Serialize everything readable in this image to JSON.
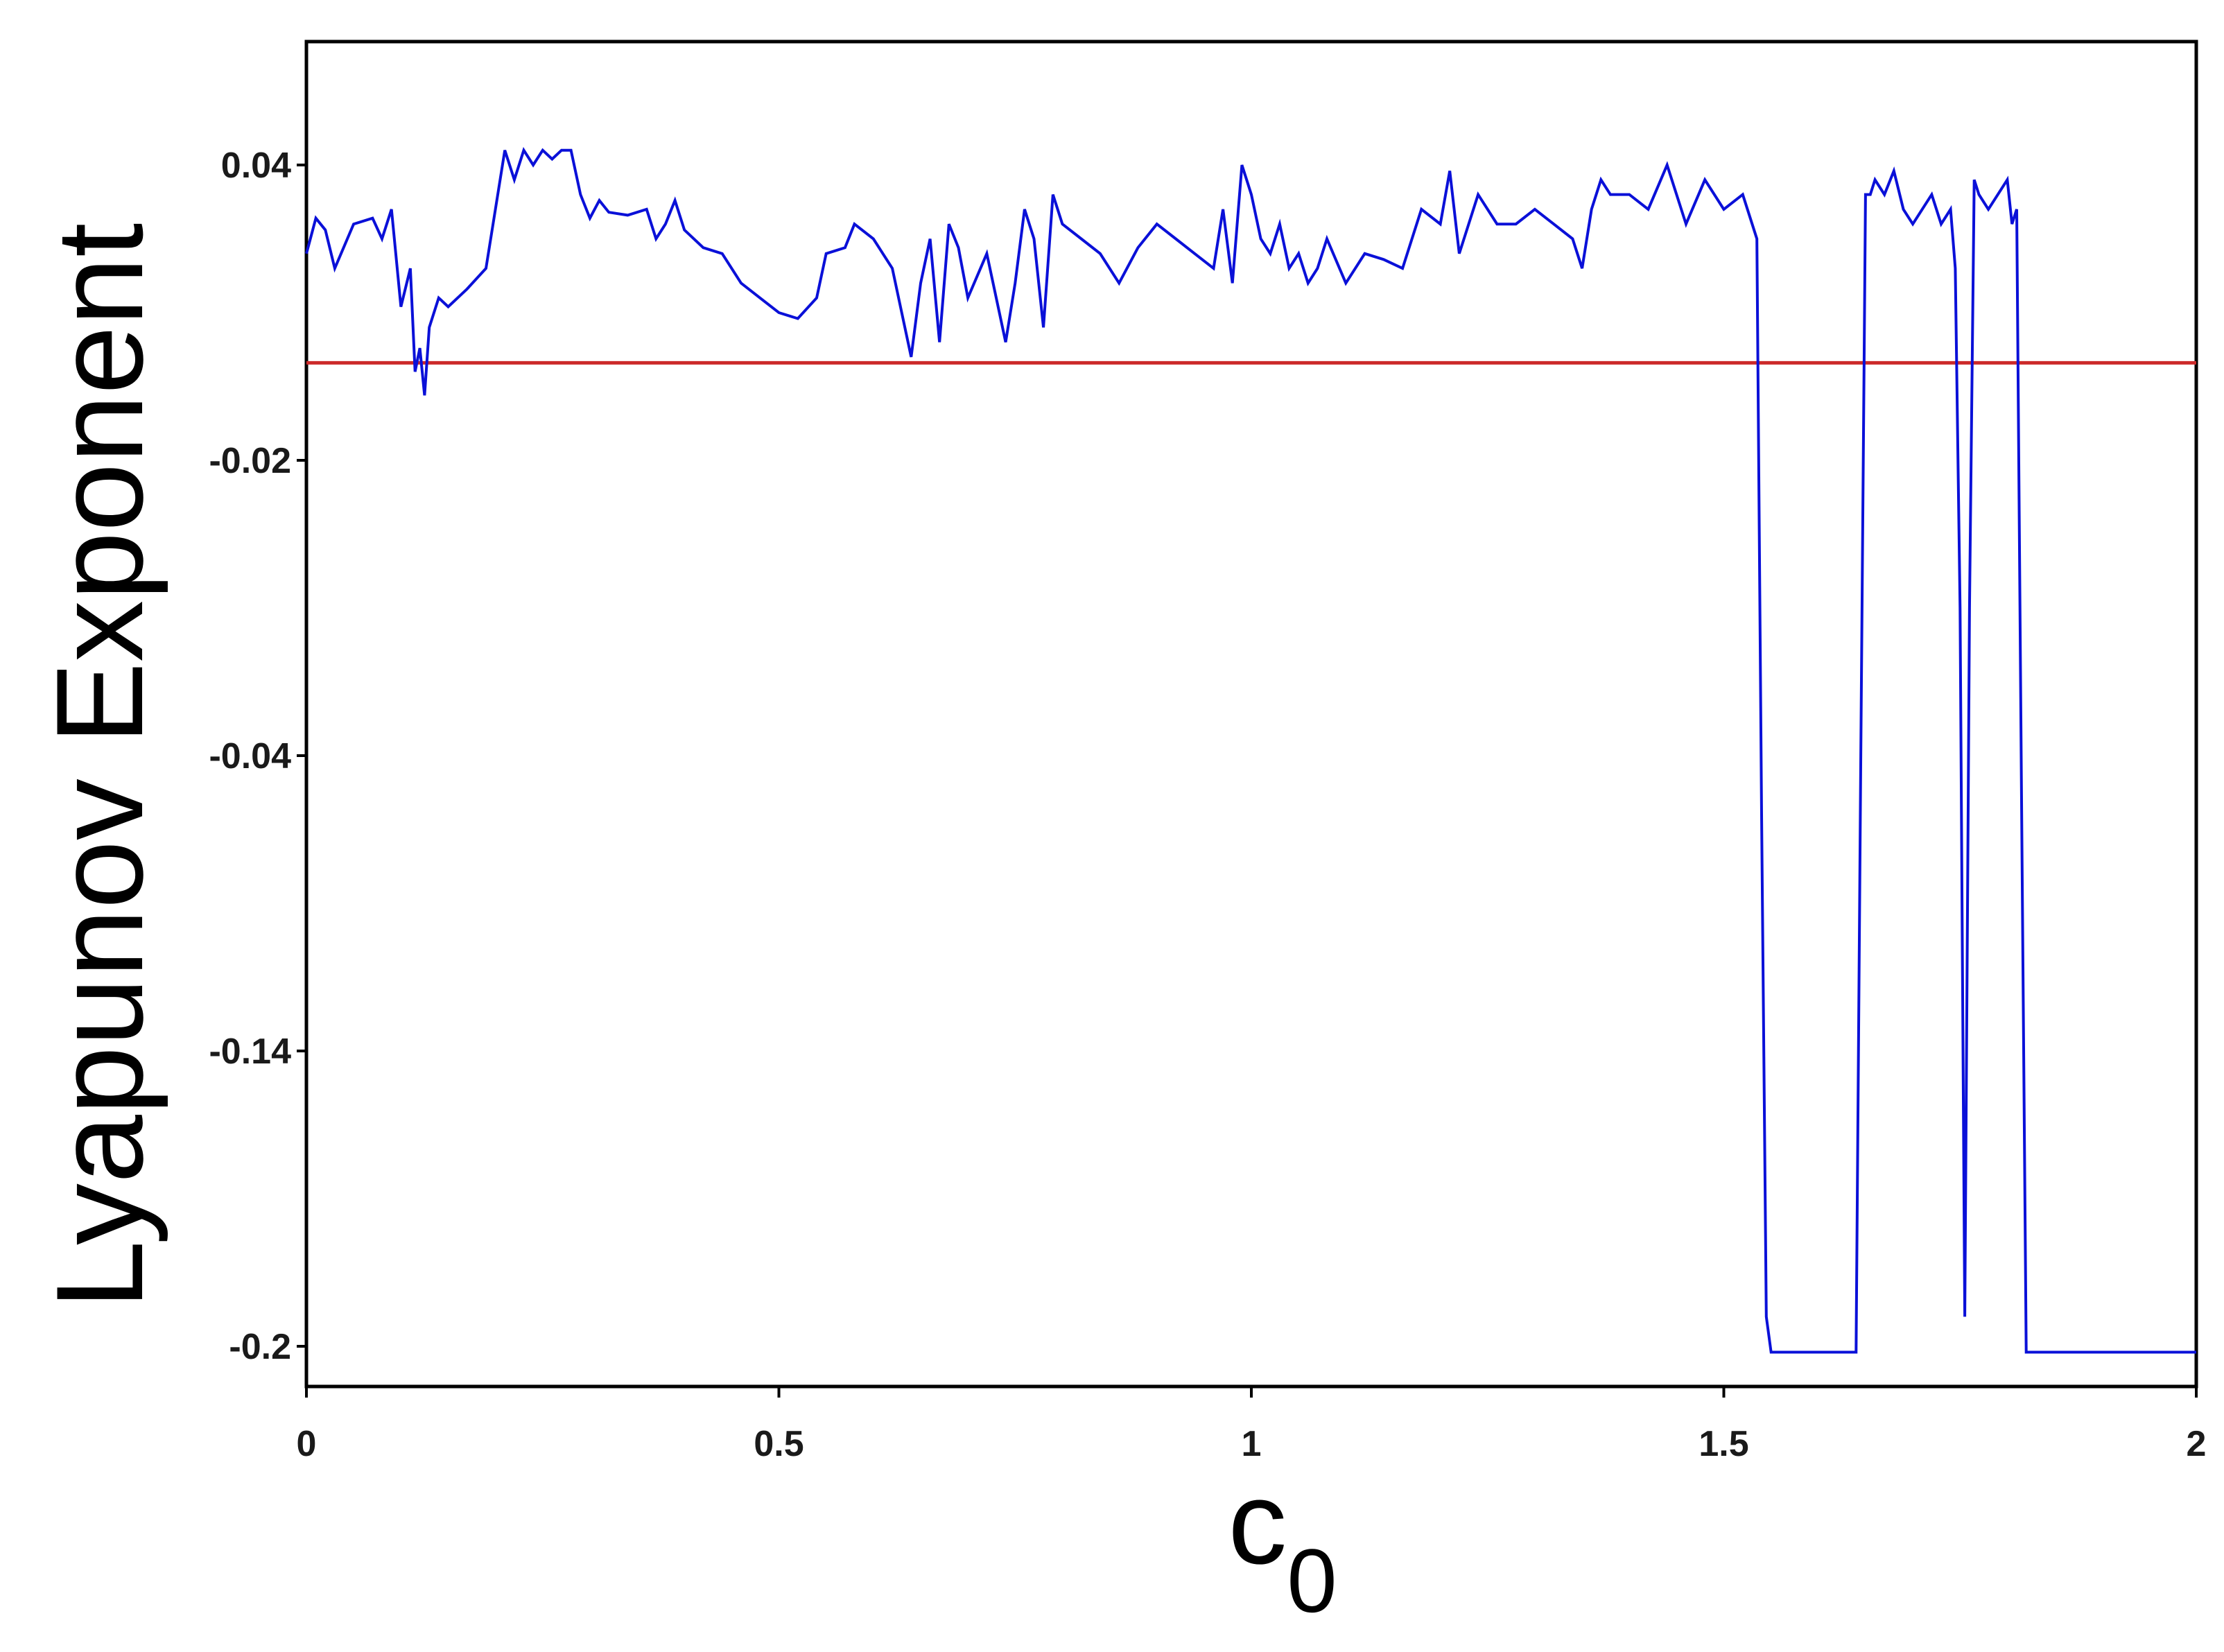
{
  "chart_data": {
    "type": "line",
    "xlabel": "c",
    "xlabel_subscript": "0",
    "ylabel": "Lyapunov Exponent",
    "xlim": [
      0,
      2
    ],
    "y_ticks": [
      {
        "label": "0.04",
        "pos": 0
      },
      {
        "label": "-0.02",
        "pos": 1
      },
      {
        "label": "-0.04",
        "pos": 2
      },
      {
        "label": "-0.14",
        "pos": 3
      },
      {
        "label": "-0.2",
        "pos": 4
      }
    ],
    "x_ticks": [
      {
        "label": "0",
        "value": 0
      },
      {
        "label": "0.5",
        "value": 0.5
      },
      {
        "label": "1",
        "value": 1
      },
      {
        "label": "1.5",
        "value": 1.5
      },
      {
        "label": "2",
        "value": 2
      }
    ],
    "grid": false,
    "legend": "none",
    "reference_line": {
      "tick_pos": 0.67,
      "color": "#cc2a2a"
    },
    "series_color": "#0a10d8",
    "series": [
      {
        "x": [
          0.0,
          0.01,
          0.02,
          0.03,
          0.05,
          0.07,
          0.08,
          0.09,
          0.1,
          0.11,
          0.115,
          0.12,
          0.125,
          0.13,
          0.14,
          0.15,
          0.17,
          0.19,
          0.2,
          0.21,
          0.22,
          0.23,
          0.24,
          0.25,
          0.26,
          0.27,
          0.28,
          0.29,
          0.3,
          0.31,
          0.32,
          0.34,
          0.36,
          0.37,
          0.38,
          0.39,
          0.4,
          0.42,
          0.44,
          0.46,
          0.48,
          0.5,
          0.52,
          0.54,
          0.55,
          0.57,
          0.58,
          0.6,
          0.62,
          0.64,
          0.65,
          0.66,
          0.67,
          0.68,
          0.69,
          0.7,
          0.72,
          0.74,
          0.75,
          0.76,
          0.77,
          0.78,
          0.79,
          0.8,
          0.82,
          0.84,
          0.86,
          0.88,
          0.9,
          0.92,
          0.94,
          0.96,
          0.97,
          0.98,
          0.99,
          1.0,
          1.01,
          1.02,
          1.03,
          1.04,
          1.05,
          1.06,
          1.07,
          1.08,
          1.1,
          1.12,
          1.14,
          1.16,
          1.18,
          1.2,
          1.21,
          1.22,
          1.24,
          1.26,
          1.28,
          1.3,
          1.32,
          1.34,
          1.35,
          1.36,
          1.37,
          1.38,
          1.4,
          1.42,
          1.44,
          1.46,
          1.48,
          1.5,
          1.52,
          1.535,
          1.54,
          1.545,
          1.55,
          1.6,
          1.64,
          1.645,
          1.65,
          1.655,
          1.66,
          1.67,
          1.68,
          1.69,
          1.7,
          1.71,
          1.72,
          1.73,
          1.74,
          1.745,
          1.75,
          1.755,
          1.76,
          1.765,
          1.77,
          1.78,
          1.79,
          1.8,
          1.805,
          1.81,
          1.815,
          1.82,
          1.85,
          1.9,
          2.0
        ],
        "pos": [
          0.3,
          0.18,
          0.22,
          0.35,
          0.2,
          0.18,
          0.25,
          0.15,
          0.48,
          0.35,
          0.7,
          0.62,
          0.78,
          0.55,
          0.45,
          0.48,
          0.42,
          0.35,
          0.15,
          -0.05,
          0.05,
          -0.05,
          0.0,
          -0.05,
          -0.02,
          -0.05,
          -0.05,
          0.1,
          0.18,
          0.12,
          0.16,
          0.17,
          0.15,
          0.25,
          0.2,
          0.12,
          0.22,
          0.28,
          0.3,
          0.4,
          0.45,
          0.5,
          0.52,
          0.45,
          0.3,
          0.28,
          0.2,
          0.25,
          0.35,
          0.65,
          0.4,
          0.25,
          0.6,
          0.2,
          0.28,
          0.45,
          0.3,
          0.6,
          0.4,
          0.15,
          0.25,
          0.55,
          0.1,
          0.2,
          0.25,
          0.3,
          0.4,
          0.28,
          0.2,
          0.25,
          0.3,
          0.35,
          0.15,
          0.4,
          0.0,
          0.1,
          0.25,
          0.3,
          0.2,
          0.35,
          0.3,
          0.4,
          0.35,
          0.25,
          0.4,
          0.3,
          0.32,
          0.35,
          0.15,
          0.2,
          0.02,
          0.3,
          0.1,
          0.2,
          0.2,
          0.15,
          0.2,
          0.25,
          0.35,
          0.15,
          0.05,
          0.1,
          0.1,
          0.15,
          0.0,
          0.2,
          0.05,
          0.15,
          0.1,
          0.25,
          2.2,
          3.9,
          4.02,
          4.02,
          4.02,
          2.0,
          0.1,
          0.1,
          0.05,
          0.1,
          0.02,
          0.15,
          0.2,
          0.15,
          0.1,
          0.2,
          0.15,
          0.35,
          1.5,
          3.9,
          1.5,
          0.05,
          0.1,
          0.15,
          0.1,
          0.05,
          0.2,
          0.15,
          2.1,
          4.02,
          4.02,
          4.02,
          4.02
        ]
      }
    ]
  }
}
